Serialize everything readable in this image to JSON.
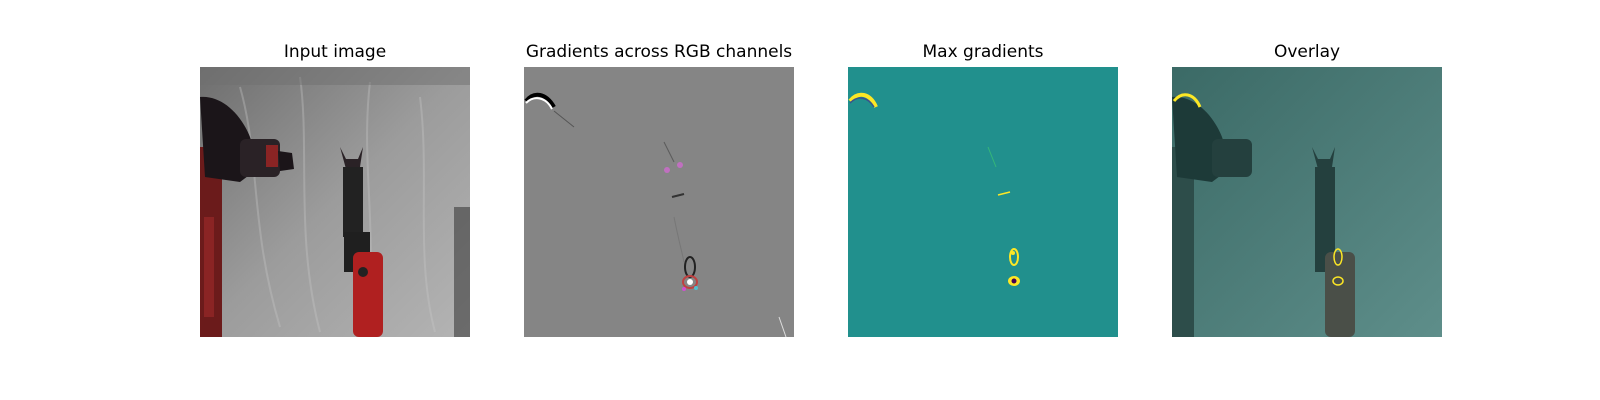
{
  "panels": [
    {
      "title": "Input image"
    },
    {
      "title": "Gradients across RGB channels"
    },
    {
      "title": "Max gradients"
    },
    {
      "title": "Overlay"
    }
  ],
  "colors": {
    "gradient_gray": "#858585",
    "max_gradient_teal": "#21908d",
    "robot_red": "#b02020",
    "highlight_yellow": "#fde725"
  }
}
